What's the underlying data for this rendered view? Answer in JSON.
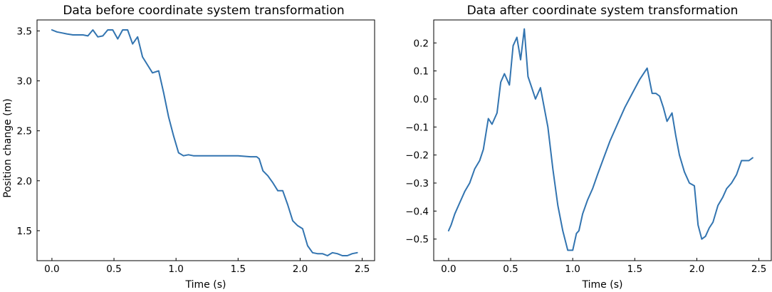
{
  "chart_data": [
    {
      "type": "line",
      "title": "Data before coordinate system transformation",
      "xlabel": "Time (s)",
      "ylabel": "Position change (m)",
      "xlim": [
        -0.12,
        2.6
      ],
      "ylim": [
        1.2,
        3.61
      ],
      "xticks": [
        0.0,
        0.5,
        1.0,
        1.5,
        2.0,
        2.5
      ],
      "xtick_labels": [
        "0.0",
        "0.5",
        "1.0",
        "1.5",
        "2.0",
        "2.5"
      ],
      "yticks": [
        1.5,
        2.0,
        2.5,
        3.0,
        3.5
      ],
      "ytick_labels": [
        "1.5",
        "2.0",
        "2.5",
        "3.0",
        "3.5"
      ],
      "grid": false,
      "color": "#3274b0",
      "series": [
        {
          "x": [
            0.0,
            0.04,
            0.08,
            0.12,
            0.17,
            0.21,
            0.25,
            0.29,
            0.33,
            0.37,
            0.41,
            0.45,
            0.49,
            0.53,
            0.57,
            0.61,
            0.65,
            0.69,
            0.73,
            0.77,
            0.81,
            0.86,
            0.9,
            0.94,
            0.98,
            1.02,
            1.06,
            1.1,
            1.14,
            1.2,
            1.3,
            1.4,
            1.5,
            1.6,
            1.65,
            1.67,
            1.7,
            1.74,
            1.78,
            1.82,
            1.86,
            1.9,
            1.94,
            1.98,
            2.02,
            2.06,
            2.1,
            2.14,
            2.18,
            2.22,
            2.26,
            2.3,
            2.34,
            2.38,
            2.42,
            2.46
          ],
          "y": [
            3.51,
            3.49,
            3.48,
            3.47,
            3.46,
            3.46,
            3.46,
            3.45,
            3.51,
            3.44,
            3.45,
            3.51,
            3.51,
            3.42,
            3.51,
            3.51,
            3.37,
            3.44,
            3.24,
            3.16,
            3.08,
            3.1,
            2.88,
            2.64,
            2.45,
            2.28,
            2.25,
            2.26,
            2.25,
            2.25,
            2.25,
            2.25,
            2.25,
            2.24,
            2.24,
            2.22,
            2.1,
            2.05,
            1.98,
            1.9,
            1.9,
            1.76,
            1.6,
            1.55,
            1.52,
            1.35,
            1.28,
            1.27,
            1.27,
            1.25,
            1.28,
            1.27,
            1.25,
            1.25,
            1.27,
            1.28
          ]
        }
      ]
    },
    {
      "type": "line",
      "title": "Data after coordinate system transformation",
      "xlabel": "Time (s)",
      "ylabel": "",
      "xlim": [
        -0.12,
        2.6
      ],
      "ylim": [
        -0.577,
        0.282
      ],
      "xticks": [
        0.0,
        0.5,
        1.0,
        1.5,
        2.0,
        2.5
      ],
      "xtick_labels": [
        "0.0",
        "0.5",
        "1.0",
        "1.5",
        "2.0",
        "2.5"
      ],
      "yticks": [
        -0.5,
        -0.4,
        -0.3,
        -0.2,
        -0.1,
        0.0,
        0.1,
        0.2
      ],
      "ytick_labels": [
        "−0.5",
        "−0.4",
        "−0.3",
        "−0.2",
        "−0.1",
        "0.0",
        "0.1",
        "0.2"
      ],
      "grid": false,
      "color": "#3274b0",
      "series": [
        {
          "x": [
            0.0,
            0.02,
            0.05,
            0.09,
            0.13,
            0.17,
            0.21,
            0.25,
            0.28,
            0.32,
            0.35,
            0.39,
            0.42,
            0.45,
            0.49,
            0.52,
            0.55,
            0.58,
            0.61,
            0.64,
            0.67,
            0.7,
            0.74,
            0.77,
            0.8,
            0.84,
            0.88,
            0.92,
            0.96,
            1.0,
            1.03,
            1.05,
            1.08,
            1.12,
            1.16,
            1.2,
            1.25,
            1.3,
            1.36,
            1.42,
            1.48,
            1.54,
            1.6,
            1.64,
            1.67,
            1.7,
            1.73,
            1.76,
            1.8,
            1.83,
            1.86,
            1.9,
            1.94,
            1.98,
            2.01,
            2.04,
            2.07,
            2.1,
            2.13,
            2.17,
            2.21,
            2.24,
            2.28,
            2.32,
            2.36,
            2.39,
            2.42,
            2.45
          ],
          "y": [
            -0.47,
            -0.45,
            -0.41,
            -0.37,
            -0.33,
            -0.3,
            -0.25,
            -0.22,
            -0.18,
            -0.07,
            -0.09,
            -0.05,
            0.06,
            0.09,
            0.05,
            0.19,
            0.22,
            0.14,
            0.25,
            0.08,
            0.04,
            0.0,
            0.04,
            -0.03,
            -0.1,
            -0.25,
            -0.38,
            -0.47,
            -0.54,
            -0.54,
            -0.48,
            -0.47,
            -0.41,
            -0.36,
            -0.32,
            -0.27,
            -0.21,
            -0.15,
            -0.09,
            -0.03,
            0.02,
            0.07,
            0.11,
            0.02,
            0.02,
            0.01,
            -0.03,
            -0.08,
            -0.05,
            -0.13,
            -0.2,
            -0.26,
            -0.3,
            -0.31,
            -0.45,
            -0.5,
            -0.49,
            -0.46,
            -0.44,
            -0.38,
            -0.35,
            -0.32,
            -0.3,
            -0.27,
            -0.22,
            -0.22,
            -0.22,
            -0.21
          ]
        }
      ]
    }
  ]
}
